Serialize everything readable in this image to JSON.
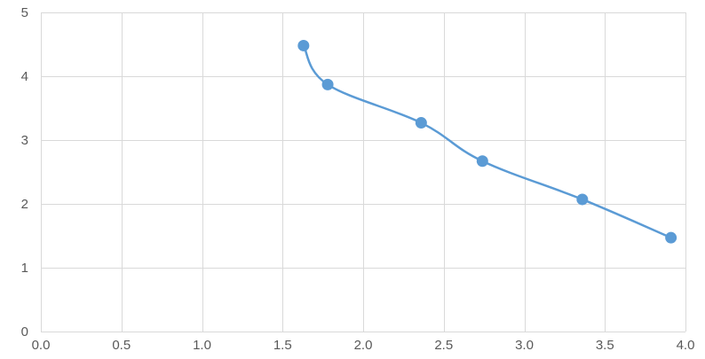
{
  "chart_data": {
    "type": "scatter",
    "title": "",
    "xlabel": "",
    "ylabel": "",
    "xlim": [
      0,
      4
    ],
    "ylim": [
      0,
      5
    ],
    "x_ticks": [
      "0.0",
      "0.5",
      "1.0",
      "1.5",
      "2.0",
      "2.5",
      "3.0",
      "3.5",
      "4.0"
    ],
    "y_ticks": [
      "0",
      "1",
      "2",
      "3",
      "4",
      "5"
    ],
    "grid": true,
    "legend": "none",
    "smooth_line": true,
    "series": [
      {
        "color": "#5b9bd5",
        "points": [
          {
            "x": 1.63,
            "y": 4.48
          },
          {
            "x": 1.78,
            "y": 3.87
          },
          {
            "x": 2.36,
            "y": 3.27
          },
          {
            "x": 2.74,
            "y": 2.67
          },
          {
            "x": 3.36,
            "y": 2.07
          },
          {
            "x": 3.91,
            "y": 1.47
          }
        ]
      }
    ]
  }
}
